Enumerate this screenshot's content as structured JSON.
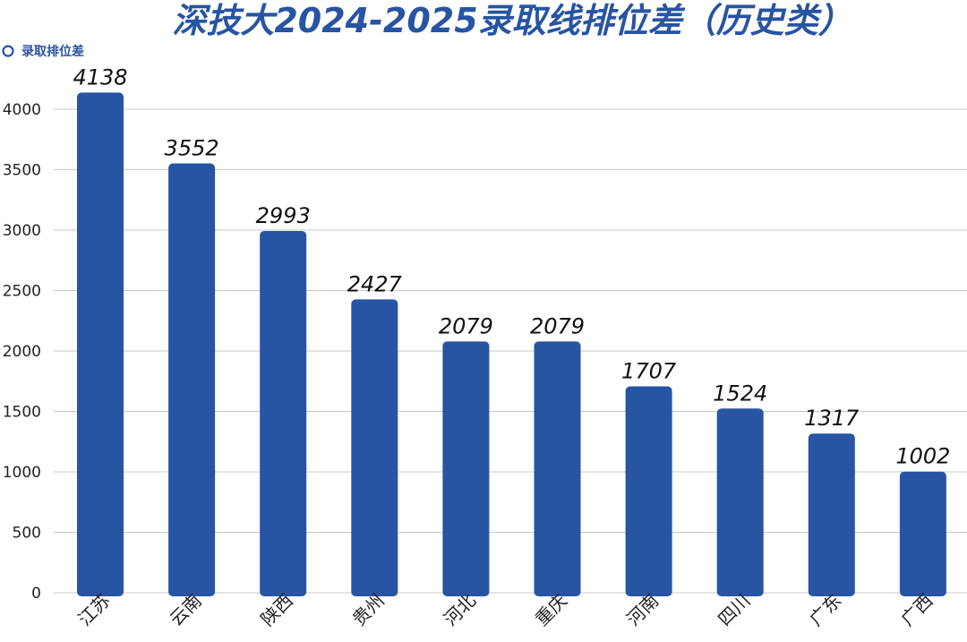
{
  "colors": {
    "bar": "#2754a3",
    "title": "#2754a3",
    "grid": "#c8c8c8",
    "axis_text": "#222222",
    "value_text": "#111111"
  },
  "chart_data": {
    "type": "bar",
    "title": "深技大2024-2025录取线排位差（历史类）",
    "legend": "录取排位差",
    "legend_position": "top-left",
    "categories": [
      "江苏",
      "云南",
      "陕西",
      "贵州",
      "河北",
      "重庆",
      "河南",
      "四川",
      "广东",
      "广西"
    ],
    "series": [
      {
        "name": "录取排位差",
        "values": [
          4138,
          3552,
          2993,
          2427,
          2079,
          2079,
          1707,
          1524,
          1317,
          1002
        ]
      }
    ],
    "ylim": [
      0,
      4000
    ],
    "yticks": [
      0,
      500,
      1000,
      1500,
      2000,
      2500,
      3000,
      3500,
      4000
    ],
    "grid": true,
    "data_labels": true
  }
}
